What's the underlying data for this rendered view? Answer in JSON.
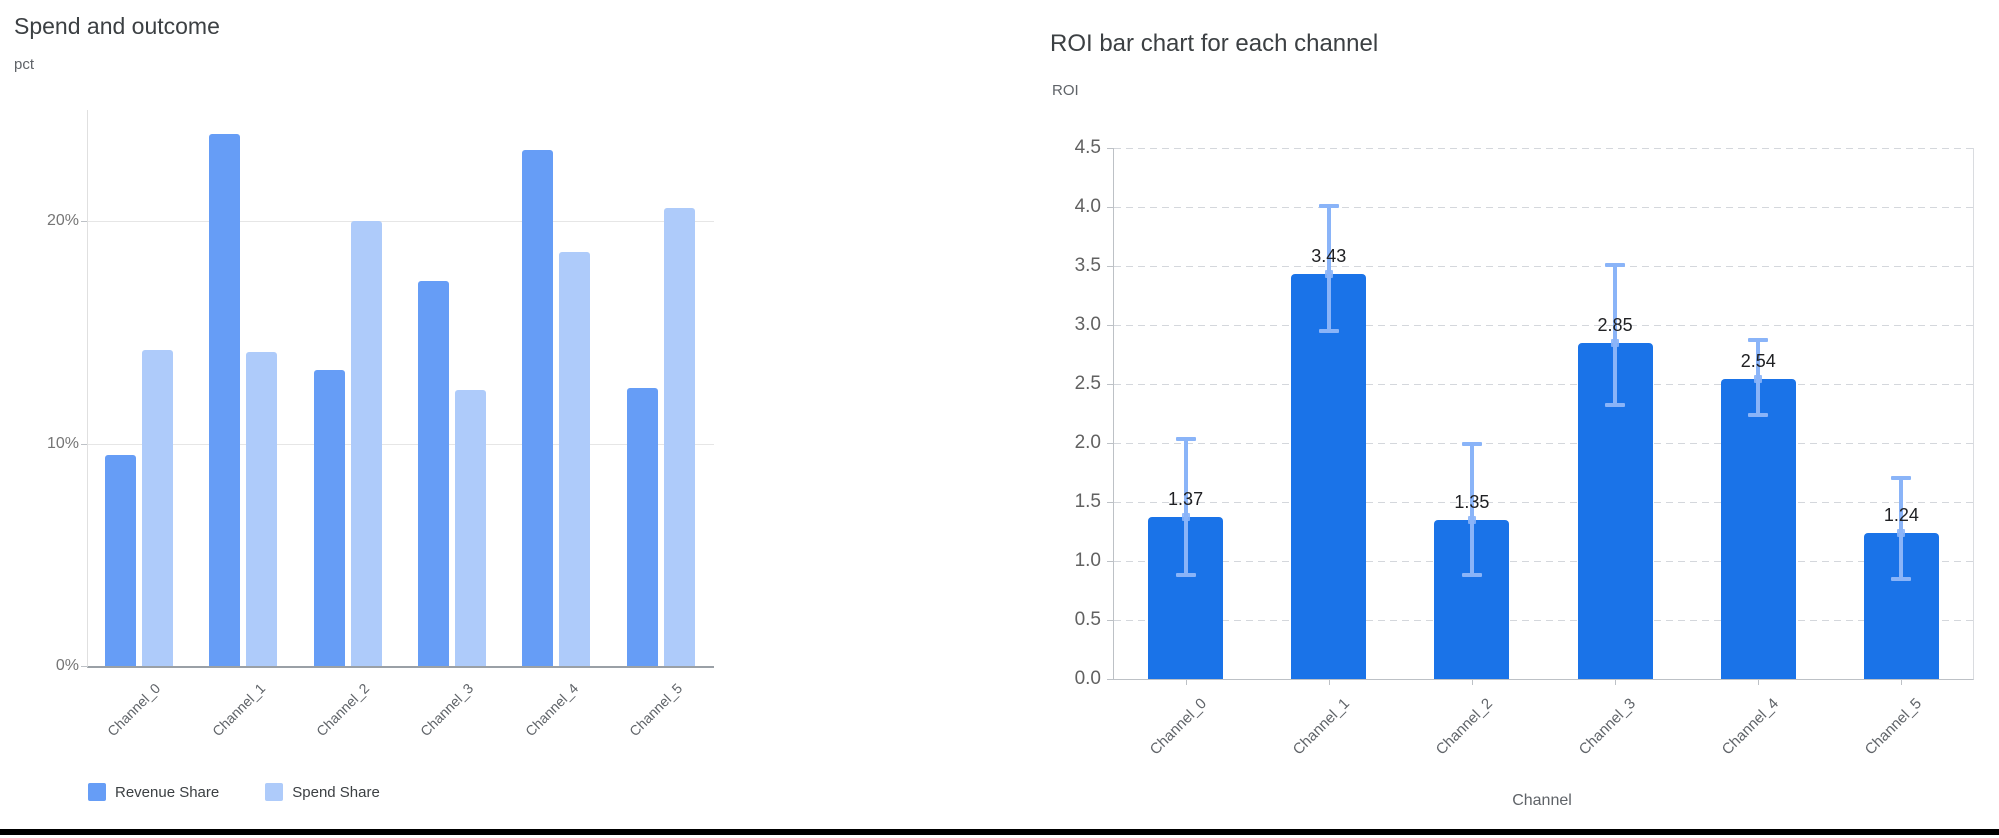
{
  "window": {
    "background": "#ffffff",
    "bottom_rule_color": "#000000"
  },
  "chart_data": [
    {
      "type": "bar",
      "title": "Spend and outcome",
      "ylabel": "pct",
      "xlabel": "",
      "categories": [
        "Channel_0",
        "Channel_1",
        "Channel_2",
        "Channel_3",
        "Channel_4",
        "Channel_5"
      ],
      "series": [
        {
          "name": "Revenue Share",
          "color": "#669DF6",
          "values": [
            9.5,
            23.9,
            13.3,
            17.3,
            23.2,
            12.5
          ]
        },
        {
          "name": "Spend Share",
          "color": "#AECBFA",
          "values": [
            14.2,
            14.1,
            20.0,
            12.4,
            18.6,
            20.6
          ]
        }
      ],
      "ylim": [
        0,
        25
      ],
      "yticks": [
        {
          "v": 0,
          "label": "0%"
        },
        {
          "v": 10,
          "label": "10%"
        },
        {
          "v": 20,
          "label": "20%"
        }
      ],
      "grid": "solid-horizontal",
      "legend_position": "bottom-left"
    },
    {
      "type": "bar",
      "title": "ROI bar chart for each channel",
      "ylabel": "ROI",
      "xlabel": "Channel",
      "categories": [
        "Channel_0",
        "Channel_1",
        "Channel_2",
        "Channel_3",
        "Channel_4",
        "Channel_5"
      ],
      "series": [
        {
          "name": "ROI",
          "color": "#1A73E8",
          "values": [
            1.37,
            3.43,
            1.35,
            2.85,
            2.54,
            1.24
          ]
        }
      ],
      "value_labels": [
        "1.37",
        "3.43",
        "1.35",
        "2.85",
        "2.54",
        "1.24"
      ],
      "error_bars": {
        "color": "#8AB4F8",
        "low": [
          0.88,
          2.95,
          0.88,
          2.32,
          2.24,
          0.85
        ],
        "high": [
          2.04,
          4.02,
          2.0,
          3.52,
          2.88,
          1.71
        ]
      },
      "ylim": [
        0,
        4.5
      ],
      "yticks": [
        {
          "v": 0.0,
          "label": "0.0"
        },
        {
          "v": 0.5,
          "label": "0.5"
        },
        {
          "v": 1.0,
          "label": "1.0"
        },
        {
          "v": 1.5,
          "label": "1.5"
        },
        {
          "v": 2.0,
          "label": "2.0"
        },
        {
          "v": 2.5,
          "label": "2.5"
        },
        {
          "v": 3.0,
          "label": "3.0"
        },
        {
          "v": 3.5,
          "label": "3.5"
        },
        {
          "v": 4.0,
          "label": "4.0"
        },
        {
          "v": 4.5,
          "label": "4.5"
        }
      ],
      "grid": "dashed-horizontal",
      "legend_position": "none"
    }
  ]
}
